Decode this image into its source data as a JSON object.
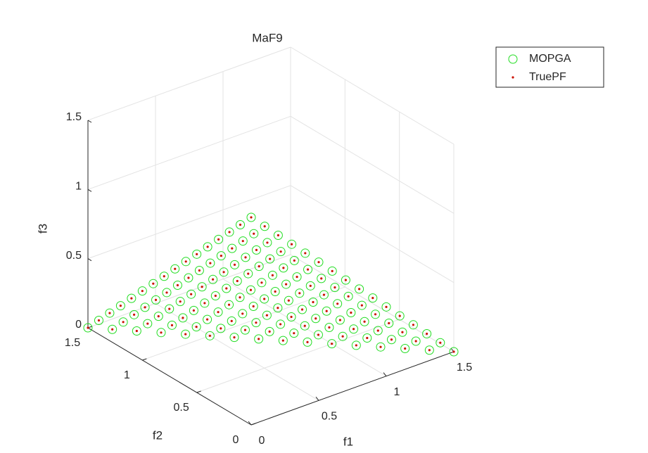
{
  "chart_data": {
    "type": "scatter3d",
    "title": "MaF9",
    "xlabel": "f1",
    "ylabel": "f2",
    "zlabel": "f3",
    "xlim": [
      0,
      1.5
    ],
    "ylim": [
      0,
      1.5
    ],
    "zlim": [
      0,
      1.5
    ],
    "xticks": [
      0,
      0.5,
      1,
      1.5
    ],
    "yticks": [
      0,
      0.5,
      1,
      1.5
    ],
    "zticks": [
      0,
      0.5,
      1,
      1.5
    ],
    "grid": true,
    "legend": "outside-top-right",
    "series": [
      {
        "name": "MOPGA",
        "color": "#22dd22",
        "marker": "circle",
        "x": [
          0,
          0,
          0,
          0,
          0,
          0,
          0,
          0,
          0,
          0,
          0,
          0,
          0,
          0,
          0,
          0,
          0.1,
          0.1,
          0.1,
          0.1,
          0.1,
          0.1,
          0.1,
          0.1,
          0.1,
          0.1,
          0.1,
          0.1,
          0.1,
          0.1,
          0.1,
          0.2,
          0.2,
          0.2,
          0.2,
          0.2,
          0.2,
          0.2,
          0.2,
          0.2,
          0.2,
          0.2,
          0.2,
          0.2,
          0.2,
          0.3,
          0.3,
          0.3,
          0.3,
          0.3,
          0.3,
          0.3,
          0.3,
          0.3,
          0.3,
          0.3,
          0.3,
          0.3,
          0.4,
          0.4,
          0.4,
          0.4,
          0.4,
          0.4,
          0.4,
          0.4,
          0.4,
          0.4,
          0.4,
          0.4,
          0.5,
          0.5,
          0.5,
          0.5,
          0.5,
          0.5,
          0.5,
          0.5,
          0.5,
          0.5,
          0.5,
          0.6,
          0.6,
          0.6,
          0.6,
          0.6,
          0.6,
          0.6,
          0.6,
          0.6,
          0.6,
          0.7,
          0.7,
          0.7,
          0.7,
          0.7,
          0.7,
          0.7,
          0.7,
          0.7,
          0.8,
          0.8,
          0.8,
          0.8,
          0.8,
          0.8,
          0.8,
          0.8,
          0.9,
          0.9,
          0.9,
          0.9,
          0.9,
          0.9,
          0.9,
          1,
          1,
          1,
          1,
          1,
          1,
          1.1,
          1.1,
          1.1,
          1.1,
          1.1,
          1.2,
          1.2,
          1.2,
          1.2,
          1.3,
          1.3,
          1.3,
          1.4,
          1.4,
          1.5
        ],
        "y": [
          0,
          0.1,
          0.2,
          0.3,
          0.4,
          0.5,
          0.6,
          0.7,
          0.8,
          0.9,
          1,
          1.1,
          1.2,
          1.3,
          1.4,
          1.5,
          0,
          0.1,
          0.2,
          0.3,
          0.4,
          0.5,
          0.6,
          0.7,
          0.8,
          0.9,
          1,
          1.1,
          1.2,
          1.3,
          1.4,
          0,
          0.1,
          0.2,
          0.3,
          0.4,
          0.5,
          0.6,
          0.7,
          0.8,
          0.9,
          1,
          1.1,
          1.2,
          1.3,
          0,
          0.1,
          0.2,
          0.3,
          0.4,
          0.5,
          0.6,
          0.7,
          0.8,
          0.9,
          1,
          1.1,
          1.2,
          0,
          0.1,
          0.2,
          0.3,
          0.4,
          0.5,
          0.6,
          0.7,
          0.8,
          0.9,
          1,
          1.1,
          0,
          0.1,
          0.2,
          0.3,
          0.4,
          0.5,
          0.6,
          0.7,
          0.8,
          0.9,
          1,
          0,
          0.1,
          0.2,
          0.3,
          0.4,
          0.5,
          0.6,
          0.7,
          0.8,
          0.9,
          0,
          0.1,
          0.2,
          0.3,
          0.4,
          0.5,
          0.6,
          0.7,
          0.8,
          0,
          0.1,
          0.2,
          0.3,
          0.4,
          0.5,
          0.6,
          0.7,
          0,
          0.1,
          0.2,
          0.3,
          0.4,
          0.5,
          0.6,
          0,
          0.1,
          0.2,
          0.3,
          0.4,
          0.5,
          0,
          0.1,
          0.2,
          0.3,
          0.4,
          0,
          0.1,
          0.2,
          0.3,
          0,
          0.1,
          0.2,
          0,
          0.1,
          0
        ],
        "z": [
          1.5,
          1.4,
          1.3,
          1.2,
          1.1,
          1,
          0.9,
          0.8,
          0.7,
          0.6,
          0.5,
          0.4,
          0.3,
          0.2,
          0.1,
          0,
          1.4,
          1.3,
          1.2,
          1.1,
          1,
          0.9,
          0.8,
          0.7,
          0.6,
          0.5,
          0.4,
          0.3,
          0.2,
          0.1,
          0,
          1.3,
          1.2,
          1.1,
          1,
          0.9,
          0.8,
          0.7,
          0.6,
          0.5,
          0.4,
          0.3,
          0.2,
          0.1,
          0,
          1.2,
          1.1,
          1,
          0.9,
          0.8,
          0.7,
          0.6,
          0.5,
          0.4,
          0.3,
          0.2,
          0.1,
          0,
          1.1,
          1,
          0.9,
          0.8,
          0.7,
          0.6,
          0.5,
          0.4,
          0.3,
          0.2,
          0.1,
          0,
          1,
          0.9,
          0.8,
          0.7,
          0.6,
          0.5,
          0.4,
          0.3,
          0.2,
          0.1,
          0,
          0.9,
          0.8,
          0.7,
          0.6,
          0.5,
          0.4,
          0.3,
          0.2,
          0.1,
          0,
          0.8,
          0.7,
          0.6,
          0.5,
          0.4,
          0.3,
          0.2,
          0.1,
          0,
          0.7,
          0.6,
          0.5,
          0.4,
          0.3,
          0.2,
          0.1,
          0,
          0.6,
          0.5,
          0.4,
          0.3,
          0.2,
          0.1,
          0,
          0.5,
          0.4,
          0.3,
          0.2,
          0.1,
          0,
          0.4,
          0.3,
          0.2,
          0.1,
          0,
          0.3,
          0.2,
          0.1,
          0,
          0.2,
          0.1,
          0,
          0.1,
          0,
          0
        ]
      },
      {
        "name": "TruePF",
        "color": "#cc1100",
        "marker": "dot",
        "x": [
          0,
          0,
          0,
          0,
          0,
          0,
          0,
          0,
          0,
          0,
          0,
          0,
          0,
          0,
          0,
          0,
          0.1,
          0.1,
          0.1,
          0.1,
          0.1,
          0.1,
          0.1,
          0.1,
          0.1,
          0.1,
          0.1,
          0.1,
          0.1,
          0.1,
          0.1,
          0.2,
          0.2,
          0.2,
          0.2,
          0.2,
          0.2,
          0.2,
          0.2,
          0.2,
          0.2,
          0.2,
          0.2,
          0.2,
          0.2,
          0.3,
          0.3,
          0.3,
          0.3,
          0.3,
          0.3,
          0.3,
          0.3,
          0.3,
          0.3,
          0.3,
          0.3,
          0.3,
          0.4,
          0.4,
          0.4,
          0.4,
          0.4,
          0.4,
          0.4,
          0.4,
          0.4,
          0.4,
          0.4,
          0.4,
          0.5,
          0.5,
          0.5,
          0.5,
          0.5,
          0.5,
          0.5,
          0.5,
          0.5,
          0.5,
          0.5,
          0.6,
          0.6,
          0.6,
          0.6,
          0.6,
          0.6,
          0.6,
          0.6,
          0.6,
          0.6,
          0.7,
          0.7,
          0.7,
          0.7,
          0.7,
          0.7,
          0.7,
          0.7,
          0.7,
          0.8,
          0.8,
          0.8,
          0.8,
          0.8,
          0.8,
          0.8,
          0.8,
          0.9,
          0.9,
          0.9,
          0.9,
          0.9,
          0.9,
          0.9,
          1,
          1,
          1,
          1,
          1,
          1,
          1.1,
          1.1,
          1.1,
          1.1,
          1.1,
          1.2,
          1.2,
          1.2,
          1.2,
          1.3,
          1.3,
          1.3,
          1.4,
          1.4,
          1.5
        ],
        "y": [
          0,
          0.1,
          0.2,
          0.3,
          0.4,
          0.5,
          0.6,
          0.7,
          0.8,
          0.9,
          1,
          1.1,
          1.2,
          1.3,
          1.4,
          1.5,
          0,
          0.1,
          0.2,
          0.3,
          0.4,
          0.5,
          0.6,
          0.7,
          0.8,
          0.9,
          1,
          1.1,
          1.2,
          1.3,
          1.4,
          0,
          0.1,
          0.2,
          0.3,
          0.4,
          0.5,
          0.6,
          0.7,
          0.8,
          0.9,
          1,
          1.1,
          1.2,
          1.3,
          0,
          0.1,
          0.2,
          0.3,
          0.4,
          0.5,
          0.6,
          0.7,
          0.8,
          0.9,
          1,
          1.1,
          1.2,
          0,
          0.1,
          0.2,
          0.3,
          0.4,
          0.5,
          0.6,
          0.7,
          0.8,
          0.9,
          1,
          1.1,
          0,
          0.1,
          0.2,
          0.3,
          0.4,
          0.5,
          0.6,
          0.7,
          0.8,
          0.9,
          1,
          0,
          0.1,
          0.2,
          0.3,
          0.4,
          0.5,
          0.6,
          0.7,
          0.8,
          0.9,
          0,
          0.1,
          0.2,
          0.3,
          0.4,
          0.5,
          0.6,
          0.7,
          0.8,
          0,
          0.1,
          0.2,
          0.3,
          0.4,
          0.5,
          0.6,
          0.7,
          0,
          0.1,
          0.2,
          0.3,
          0.4,
          0.5,
          0.6,
          0,
          0.1,
          0.2,
          0.3,
          0.4,
          0.5,
          0,
          0.1,
          0.2,
          0.3,
          0.4,
          0,
          0.1,
          0.2,
          0.3,
          0,
          0.1,
          0.2,
          0,
          0.1,
          0
        ],
        "z": [
          1.5,
          1.4,
          1.3,
          1.2,
          1.1,
          1,
          0.9,
          0.8,
          0.7,
          0.6,
          0.5,
          0.4,
          0.3,
          0.2,
          0.1,
          0,
          1.4,
          1.3,
          1.2,
          1.1,
          1,
          0.9,
          0.8,
          0.7,
          0.6,
          0.5,
          0.4,
          0.3,
          0.2,
          0.1,
          0,
          1.3,
          1.2,
          1.1,
          1,
          0.9,
          0.8,
          0.7,
          0.6,
          0.5,
          0.4,
          0.3,
          0.2,
          0.1,
          0,
          1.2,
          1.1,
          1,
          0.9,
          0.8,
          0.7,
          0.6,
          0.5,
          0.4,
          0.3,
          0.2,
          0.1,
          0,
          1.1,
          1,
          0.9,
          0.8,
          0.7,
          0.6,
          0.5,
          0.4,
          0.3,
          0.2,
          0.1,
          0,
          1,
          0.9,
          0.8,
          0.7,
          0.6,
          0.5,
          0.4,
          0.3,
          0.2,
          0.1,
          0,
          0.9,
          0.8,
          0.7,
          0.6,
          0.5,
          0.4,
          0.3,
          0.2,
          0.1,
          0,
          0.8,
          0.7,
          0.6,
          0.5,
          0.4,
          0.3,
          0.2,
          0.1,
          0,
          0.7,
          0.6,
          0.5,
          0.4,
          0.3,
          0.2,
          0.1,
          0,
          0.6,
          0.5,
          0.4,
          0.3,
          0.2,
          0.1,
          0,
          0.5,
          0.4,
          0.3,
          0.2,
          0.1,
          0,
          0.4,
          0.3,
          0.2,
          0.1,
          0,
          0.3,
          0.2,
          0.1,
          0,
          0.2,
          0.1,
          0,
          0.1,
          0,
          0
        ]
      }
    ]
  }
}
